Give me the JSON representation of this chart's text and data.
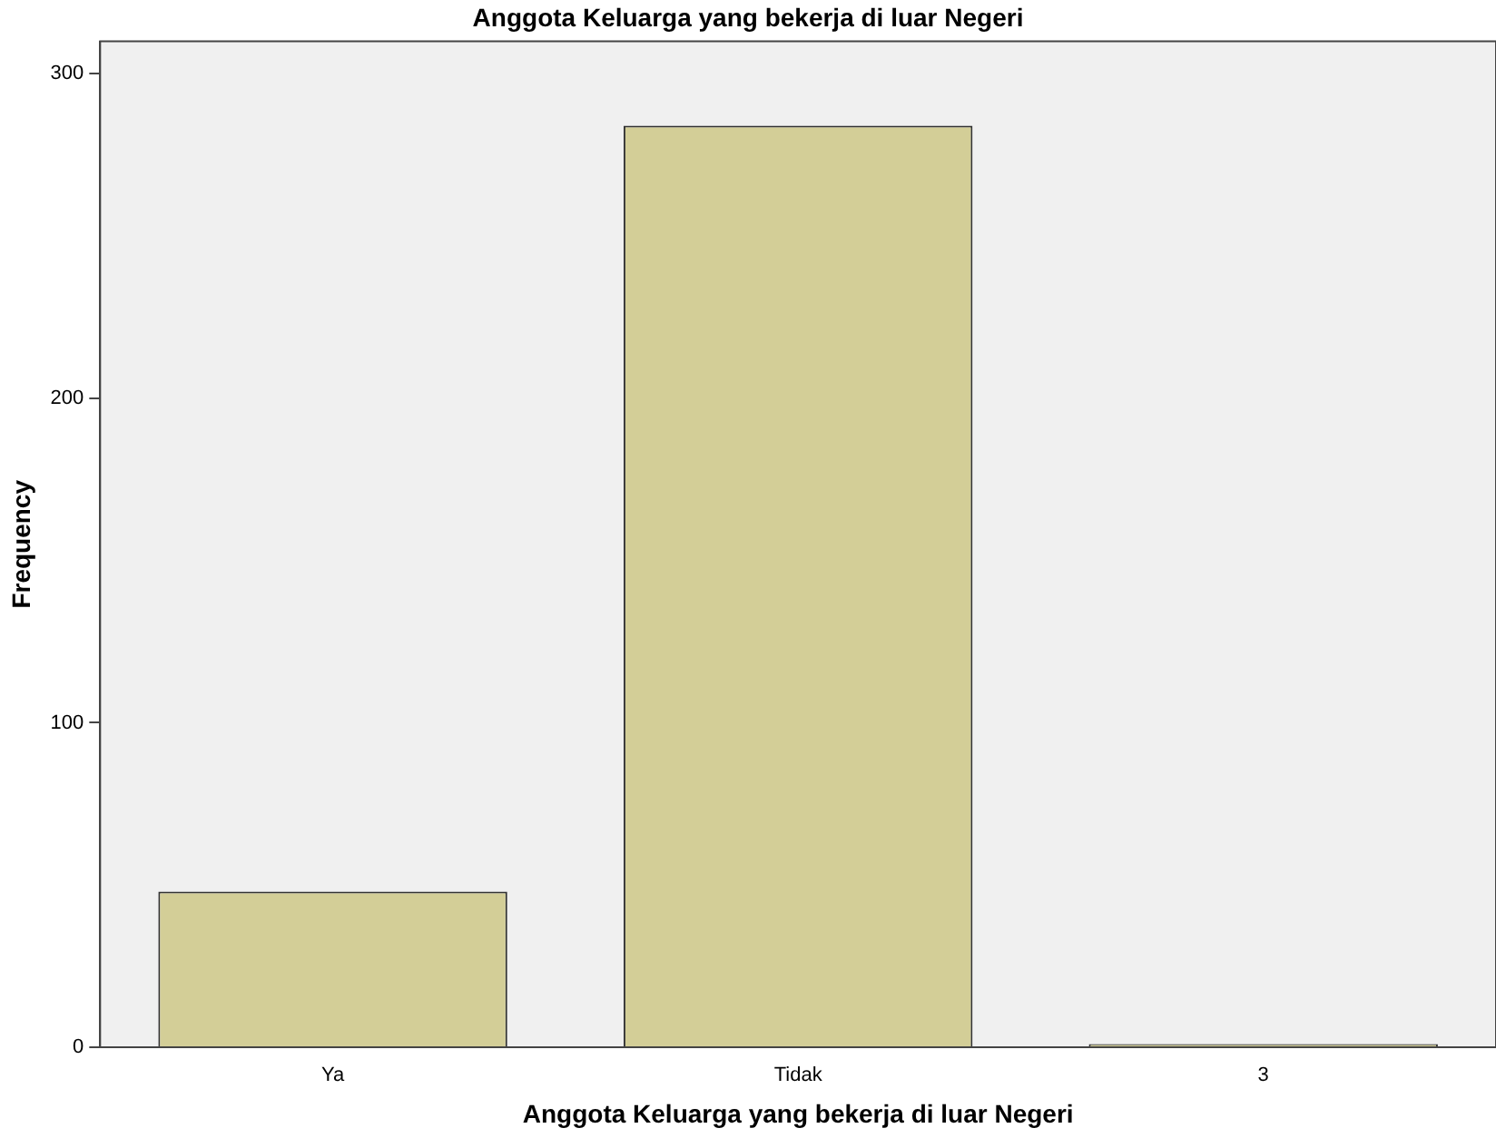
{
  "chart_data": {
    "type": "bar",
    "title": "Anggota Keluarga yang bekerja di luar Negeri",
    "xlabel": "Anggota Keluarga yang bekerja di luar Negeri",
    "ylabel": "Frequency",
    "categories": [
      "Ya",
      "Tidak",
      "3"
    ],
    "values": [
      48,
      284,
      1
    ],
    "color": "#d3ce97",
    "ylim": [
      0,
      310
    ],
    "yticks": [
      0,
      100,
      200,
      300
    ],
    "grid": false,
    "legend": false
  }
}
